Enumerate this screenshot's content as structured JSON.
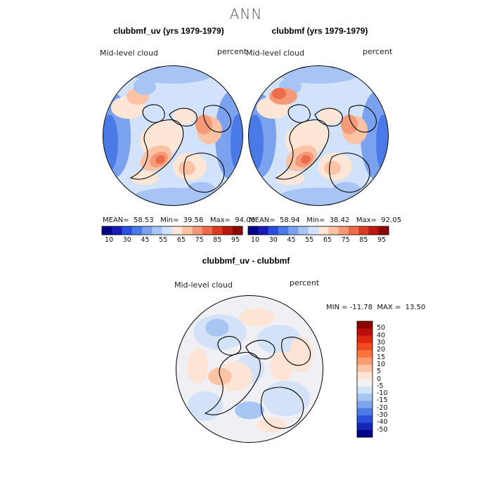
{
  "figure": {
    "title": "ANN"
  },
  "panels": [
    {
      "title": "clubbmf_uv (yrs 1979-1979)",
      "field": "Mid-level cloud",
      "units": "percent",
      "stats": {
        "mean_label": "MEAN=",
        "mean": "58.53",
        "min_label": "Min=",
        "min": "39.56",
        "max_label": "Max=",
        "max": "94.00"
      }
    },
    {
      "title": "clubbmf (yrs 1979-1979)",
      "field": "Mid-level cloud",
      "units": "percent",
      "stats": {
        "mean_label": "MEAN=",
        "mean": "58.94",
        "min_label": "Min=",
        "min": "38.42",
        "max_label": "Max=",
        "max": "92.05"
      }
    },
    {
      "title": "clubbmf_uv - clubbmf",
      "field": "Mid-level cloud",
      "units": "percent",
      "minmax": "MIN = -11.78  MAX =  13.50"
    }
  ],
  "chart_data": [
    {
      "type": "heatmap",
      "projection": "north polar stereographic",
      "title": "clubbmf_uv (yrs 1979-1979)",
      "variable": "Mid-level cloud",
      "units": "percent",
      "stats": {
        "mean": 58.53,
        "min": 39.56,
        "max": 94.0
      },
      "colorbar": {
        "orientation": "horizontal",
        "tick_labels": [
          "10",
          "30",
          "45",
          "55",
          "65",
          "75",
          "85",
          "95"
        ],
        "colors": [
          "#00008c",
          "#1a1ab4",
          "#2a50e0",
          "#4a7ae8",
          "#7aa2ee",
          "#a7c4f4",
          "#d2e2fa",
          "#fde6d6",
          "#fbc2a4",
          "#f59a78",
          "#ec6c4c",
          "#dd3a22",
          "#bb1a0e",
          "#8c0800"
        ]
      }
    },
    {
      "type": "heatmap",
      "projection": "north polar stereographic",
      "title": "clubbmf (yrs 1979-1979)",
      "variable": "Mid-level cloud",
      "units": "percent",
      "stats": {
        "mean": 58.94,
        "min": 38.42,
        "max": 92.05
      },
      "colorbar": {
        "orientation": "horizontal",
        "tick_labels": [
          "10",
          "30",
          "45",
          "55",
          "65",
          "75",
          "85",
          "95"
        ],
        "colors": [
          "#00008c",
          "#1a1ab4",
          "#2a50e0",
          "#4a7ae8",
          "#7aa2ee",
          "#a7c4f4",
          "#d2e2fa",
          "#fde6d6",
          "#fbc2a4",
          "#f59a78",
          "#ec6c4c",
          "#dd3a22",
          "#bb1a0e",
          "#8c0800"
        ]
      }
    },
    {
      "type": "heatmap",
      "projection": "north polar stereographic",
      "title": "clubbmf_uv - clubbmf",
      "variable": "Mid-level cloud",
      "units": "percent",
      "stats": {
        "min": -11.78,
        "max": 13.5
      },
      "colorbar": {
        "orientation": "vertical",
        "tick_labels": [
          "50",
          "40",
          "30",
          "20",
          "15",
          "10",
          "5",
          "0",
          "-5",
          "-10",
          "-15",
          "-20",
          "-30",
          "-40",
          "-50"
        ],
        "colors": [
          "#8c0000",
          "#b80f0a",
          "#dc2810",
          "#f04a1e",
          "#f8743a",
          "#fa9c70",
          "#fcc4a4",
          "#fde4d4",
          "#f4f2ee",
          "#d4e2f8",
          "#a8c6f2",
          "#7ea4ec",
          "#4d7ae4",
          "#2a50dc",
          "#1428b8",
          "#000088"
        ]
      }
    }
  ]
}
